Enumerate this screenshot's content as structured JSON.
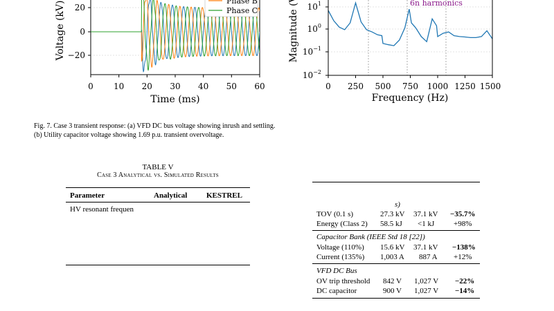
{
  "figure": {
    "left_plot": {
      "ylabel": "Voltage (kV)",
      "xlabel": "Time (ms)",
      "xticks": [
        "0",
        "10",
        "20",
        "30",
        "40",
        "50",
        "60"
      ],
      "yticks": [
        "20",
        "0",
        "−20"
      ],
      "legend": [
        "Phase B",
        "Phase C"
      ]
    },
    "right_plot": {
      "ylabel": "Magnitude (V",
      "xlabel": "Frequency (Hz)",
      "xticks": [
        "0",
        "250",
        "500",
        "750",
        "1000",
        "1250",
        "1500"
      ],
      "yticks": [
        "10",
        "10",
        "10",
        "10"
      ],
      "ytick_exps": [
        "1",
        "0",
        "−1",
        "−2"
      ],
      "annotation": "6n harmonics"
    },
    "colors": {
      "phase_a": "#1f77b4",
      "phase_b": "#ff7f0e",
      "phase_c": "#2ca02c",
      "spectrum": "#1f77b4",
      "annotation": "#8b1a8b"
    }
  },
  "chart_data": [
    {
      "type": "line",
      "xlabel": "Time (ms)",
      "ylabel": "Voltage (kV)",
      "xlim": [
        0,
        60
      ],
      "ylim": [
        -35,
        35
      ],
      "series": [
        {
          "name": "Phase B",
          "note": "visible"
        },
        {
          "name": "Phase C",
          "note": "visible"
        }
      ]
    },
    {
      "type": "line",
      "xlabel": "Frequency (Hz)",
      "ylabel": "Magnitude (V",
      "xlim": [
        0,
        1500
      ],
      "ylim_log": [
        0.01,
        20
      ],
      "x": [
        0,
        50,
        100,
        150,
        200,
        250,
        300,
        350,
        400,
        450,
        490,
        500,
        550,
        600,
        650,
        700,
        740,
        760,
        800,
        850,
        900,
        950,
        990,
        1000,
        1050,
        1100,
        1150,
        1200,
        1250,
        1300,
        1350,
        1400,
        1450,
        1500
      ],
      "y": [
        7,
        2.5,
        1.3,
        1,
        2,
        15,
        2.2,
        1,
        0.8,
        0.6,
        0.55,
        0.25,
        0.22,
        0.2,
        0.35,
        1.2,
        8,
        2,
        1.2,
        0.5,
        0.3,
        3,
        1.5,
        0.5,
        0.7,
        0.8,
        0.55,
        0.5,
        0.48,
        0.45,
        0.45,
        0.5,
        0.9,
        0.4
      ]
    }
  ],
  "caption": "Fig. 7.  Case 3 transient response: (a) VFD DC bus voltage showing inrush and settling. (b) Utility capacitor voltage showing 1.69 p.u. transient overvoltage.",
  "table_left": {
    "title_1": "TABLE V",
    "title_2": "Case 3 Analytical vs. Simulated Results",
    "headers": [
      "Parameter",
      "Analytical",
      "KESTREL"
    ],
    "row_1": "HV resonant frequen"
  },
  "table_right": {
    "fragment": "s)",
    "rows_a": [
      {
        "param": "TOV (0.1 s)",
        "v1": "27.3 kV",
        "v2": "37.1 kV",
        "v3": "−35.7%"
      },
      {
        "param": "Energy (Class 2)",
        "v1": "58.5 kJ",
        "v2": "<1 kJ",
        "v3": "+98%"
      }
    ],
    "section_b": "Capacitor Bank (IEEE Std 18 [22])",
    "rows_b": [
      {
        "param": "Voltage (110%)",
        "v1": "15.6 kV",
        "v2": "37.1 kV",
        "v3": "−138%"
      },
      {
        "param": "Current (135%)",
        "v1": "1,003 A",
        "v2": "887 A",
        "v3": "+12%"
      }
    ],
    "section_c": "VFD DC Bus",
    "rows_c": [
      {
        "param": "OV trip threshold",
        "v1": "842 V",
        "v2": "1,027 V",
        "v3": "−22%"
      },
      {
        "param": "DC capacitor",
        "v1": "900 V",
        "v2": "1,027 V",
        "v3": "−14%"
      }
    ]
  }
}
